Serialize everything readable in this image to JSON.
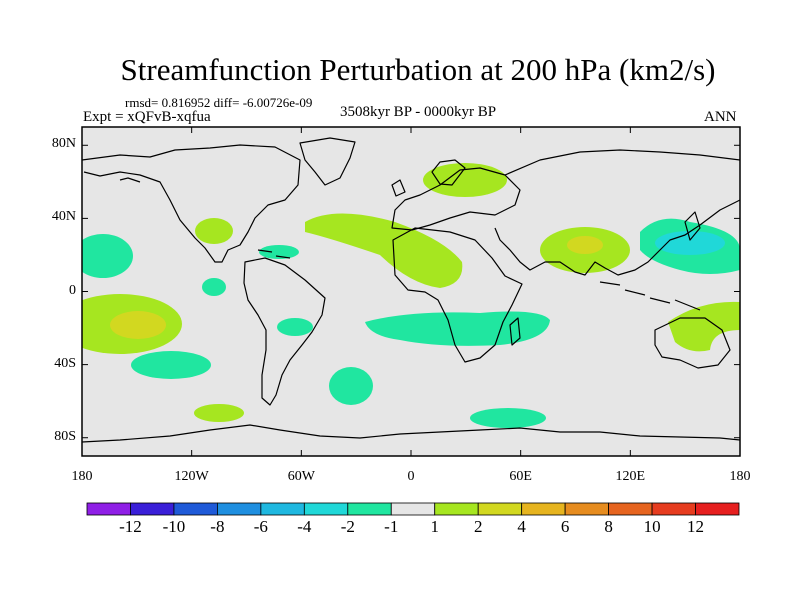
{
  "title": "Streamfunction Perturbation at 200 hPa (km2/s)",
  "stats": "rmsd= 0.816952  diff= -6.00726e-09",
  "experiment": "Expt = xQFvB-xqfua",
  "period": "3508kyr BP - 0000kyr BP",
  "season": "ANN",
  "chart_data": {
    "type": "heatmap",
    "projection": "cylindrical-equidistant",
    "lon_range": [
      -180,
      180
    ],
    "lat_range": [
      -90,
      90
    ],
    "xticks": [
      {
        "lon": -180,
        "label": "180"
      },
      {
        "lon": -120,
        "label": "120W"
      },
      {
        "lon": -60,
        "label": "60W"
      },
      {
        "lon": 0,
        "label": "0"
      },
      {
        "lon": 60,
        "label": "60E"
      },
      {
        "lon": 120,
        "label": "120E"
      },
      {
        "lon": 180,
        "label": "180"
      }
    ],
    "yticks": [
      {
        "lat": 80,
        "label": "80N"
      },
      {
        "lat": 40,
        "label": "40N"
      },
      {
        "lat": 0,
        "label": "0"
      },
      {
        "lat": -40,
        "label": "40S"
      },
      {
        "lat": -80,
        "label": "80S"
      }
    ],
    "colorbar": {
      "colors": [
        "#8f1fe6",
        "#3a1fd8",
        "#1f5ad8",
        "#1f8fe0",
        "#1fb8e0",
        "#20d8d8",
        "#20e6a0",
        "#e6e6e6",
        "#a6e620",
        "#d2d820",
        "#e6b41f",
        "#e68c1f",
        "#e6641f",
        "#e63c1f",
        "#e61f1f"
      ],
      "labels": [
        "-12",
        "-10",
        "-8",
        "-6",
        "-4",
        "-2",
        "-1",
        "1",
        "2",
        "4",
        "6",
        "8",
        "10",
        "12"
      ]
    },
    "anomalies": [
      {
        "name": "north-atlantic-positive",
        "lon": -20,
        "lat": 38,
        "value": 1.5
      },
      {
        "name": "scandinavia-positive",
        "lon": 40,
        "lat": 65,
        "value": 1.5
      },
      {
        "name": "tibet-positive",
        "lon": 90,
        "lat": 30,
        "value": 2.5
      },
      {
        "name": "west-pacific-negative",
        "lon": 145,
        "lat": 32,
        "value": -2.5
      },
      {
        "name": "east-pacific-positive",
        "lon": -155,
        "lat": -15,
        "value": 2.5
      },
      {
        "name": "southern-africa-negative",
        "lon": 20,
        "lat": -20,
        "value": -1.5
      },
      {
        "name": "australia-positive",
        "lon": 155,
        "lat": -20,
        "value": 1.5
      }
    ]
  }
}
